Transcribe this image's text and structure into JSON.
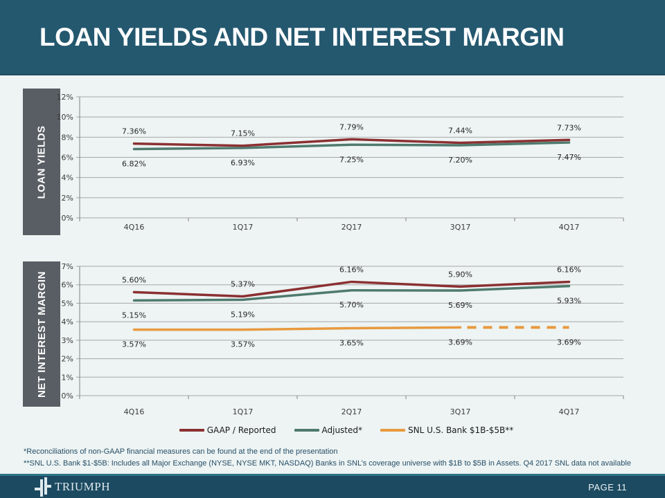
{
  "header": {
    "title": "LOAN YIELDS AND NET INTEREST MARGIN"
  },
  "colors": {
    "header_bg": "#24586f",
    "footer_bg": "#1c4a61",
    "footer_divider": "#2f7487",
    "slide_bg": "#edf4f3",
    "side_label_bg": "#595e64",
    "gridline": "#a6a6a6",
    "axis": "#808080",
    "gaap_red": "#8b3032",
    "adjusted_teal": "#4f7a6e",
    "snl_orange": "#e8993f",
    "footnote_blue": "#274e68"
  },
  "chart_data": [
    {
      "type": "line",
      "title": "LOAN YIELDS",
      "categories": [
        "4Q16",
        "1Q17",
        "2Q17",
        "3Q17",
        "4Q17"
      ],
      "ylim": [
        0,
        12
      ],
      "ytick_step": 2,
      "ytick_labels": [
        "0%",
        "2%",
        "4%",
        "6%",
        "8%",
        "10%",
        "12%"
      ],
      "grid": true,
      "legend_position": "shared-bottom",
      "series": [
        {
          "name": "GAAP / Reported",
          "color": "#8b3032",
          "values": [
            7.36,
            7.15,
            7.79,
            7.44,
            7.73
          ],
          "labels": [
            "7.36%",
            "7.15%",
            "7.79%",
            "7.44%",
            "7.73%"
          ],
          "label_position": "above"
        },
        {
          "name": "Adjusted*",
          "color": "#4f7a6e",
          "values": [
            6.82,
            6.93,
            7.25,
            7.2,
            7.47
          ],
          "labels": [
            "6.82%",
            "6.93%",
            "7.25%",
            "7.20%",
            "7.47%"
          ],
          "label_position": "below"
        }
      ]
    },
    {
      "type": "line",
      "title": "NET INTEREST MARGIN",
      "categories": [
        "4Q16",
        "1Q17",
        "2Q17",
        "3Q17",
        "4Q17"
      ],
      "ylim": [
        0,
        7
      ],
      "ytick_step": 1,
      "ytick_labels": [
        "0%",
        "1%",
        "2%",
        "3%",
        "4%",
        "5%",
        "6%",
        "7%"
      ],
      "grid": true,
      "legend_position": "shared-bottom",
      "series": [
        {
          "name": "GAAP / Reported",
          "color": "#8b3032",
          "values": [
            5.6,
            5.37,
            6.16,
            5.9,
            6.16
          ],
          "labels": [
            "5.60%",
            "5.37%",
            "6.16%",
            "5.90%",
            "6.16%"
          ],
          "label_position": "above"
        },
        {
          "name": "Adjusted*",
          "color": "#4f7a6e",
          "values": [
            5.15,
            5.19,
            5.7,
            5.69,
            5.93
          ],
          "labels": [
            "5.15%",
            "5.19%",
            "5.70%",
            "5.69%",
            "5.93%"
          ],
          "label_position": "below"
        },
        {
          "name": "SNL U.S. Bank $1B-$5B**",
          "color": "#e8993f",
          "values": [
            3.57,
            3.57,
            3.65,
            3.69,
            3.69
          ],
          "labels": [
            "3.57%",
            "3.57%",
            "3.65%",
            "3.69%",
            "3.69%"
          ],
          "label_position": "below",
          "dashed_last_segment": true
        }
      ]
    }
  ],
  "legend": {
    "items": [
      {
        "label": "GAAP / Reported",
        "color": "#8b3032"
      },
      {
        "label": "Adjusted*",
        "color": "#4f7a6e"
      },
      {
        "label": "SNL U.S. Bank $1B-$5B**",
        "color": "#e8993f"
      }
    ]
  },
  "footnotes": [
    "*Reconciliations of non-GAAP financial measures can be found at the end of the presentation",
    "**SNL U.S. Bank $1-$5B: Includes all Major Exchange (NYSE, NYSE MKT, NASDAQ) Banks in SNL’s coverage universe with $1B to $5B in Assets. Q4 2017 SNL data not available"
  ],
  "footer": {
    "brand": "TRIUMPH",
    "page_label": "PAGE 11"
  }
}
